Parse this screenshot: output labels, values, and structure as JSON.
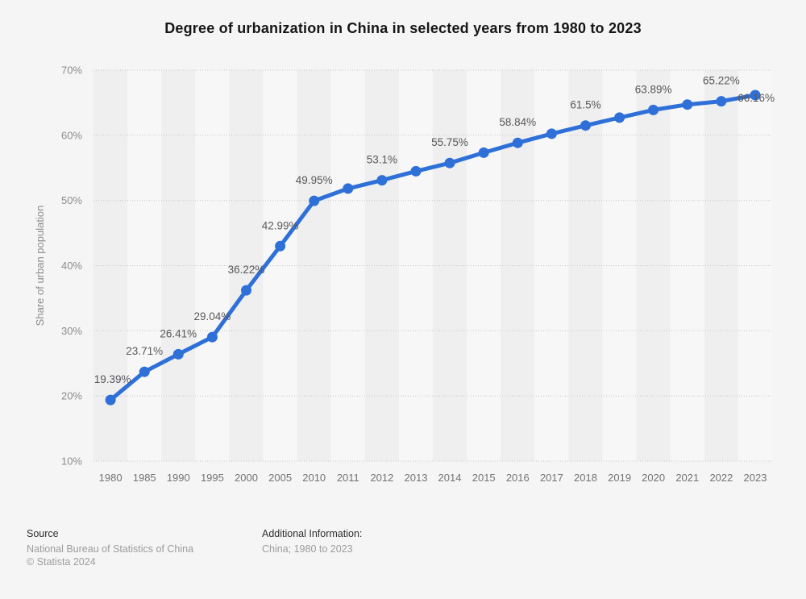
{
  "title": "Degree of urbanization in China in selected years from 1980 to 2023",
  "chart_data": {
    "type": "line",
    "title": "Degree of urbanization in China in selected years from 1980 to 2023",
    "x": [
      "1980",
      "1985",
      "1990",
      "1995",
      "2000",
      "2005",
      "2010",
      "2011",
      "2012",
      "2013",
      "2014",
      "2015",
      "2016",
      "2017",
      "2018",
      "2019",
      "2020",
      "2021",
      "2022",
      "2023"
    ],
    "values": [
      19.39,
      23.71,
      26.41,
      29.04,
      36.22,
      42.99,
      49.95,
      51.83,
      53.1,
      54.49,
      55.75,
      57.33,
      58.84,
      60.24,
      61.5,
      62.71,
      63.89,
      64.72,
      65.22,
      66.16
    ],
    "point_labels": [
      "19.39%",
      "23.71%",
      "26.41%",
      "29.04%",
      "36.22%",
      "42.99%",
      "49.95%",
      null,
      "53.1%",
      null,
      "55.75%",
      null,
      "58.84%",
      null,
      "61.5%",
      null,
      "63.89%",
      null,
      "65.22%",
      "66.16%"
    ],
    "xlabel": "",
    "ylabel": "Share of urban population",
    "ylim": [
      10,
      70
    ],
    "yticks": [
      "10%",
      "20%",
      "30%",
      "40%",
      "50%",
      "60%",
      "70%"
    ],
    "grid": "horizontal-dotted",
    "legend": "none",
    "line_color": "#2f70d8",
    "band_colors": [
      "#efeff0",
      "#f7f7f8"
    ],
    "gridline_color": "#c7c7c7",
    "label_color": "#58585a"
  },
  "footer": {
    "source_label": "Source",
    "source_org": "National Bureau of Statistics of China",
    "copyright": "© Statista 2024",
    "additional_label": "Additional Information:",
    "additional_value": "China; 1980 to 2023"
  }
}
